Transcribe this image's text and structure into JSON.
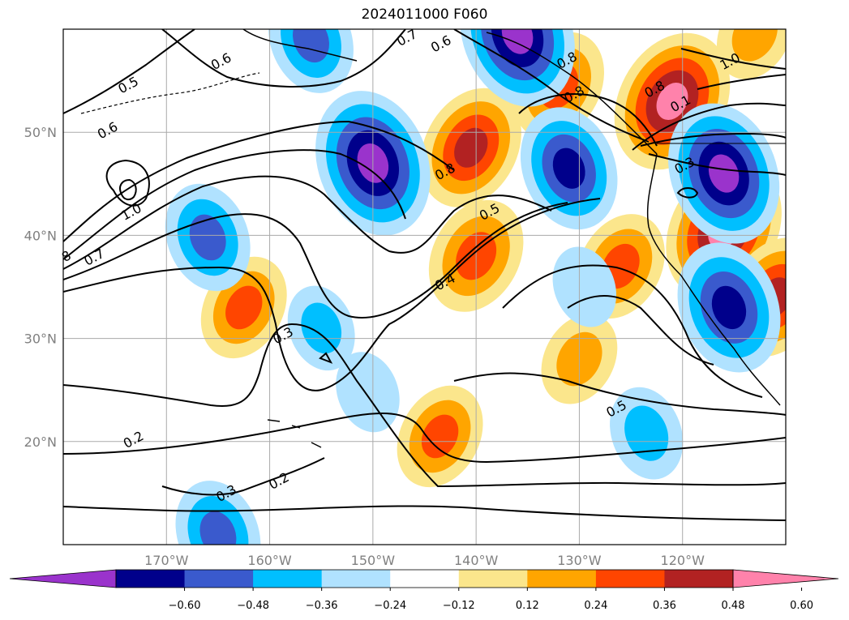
{
  "title": "2024011000 F060",
  "map": {
    "projection": "lat-lon",
    "lon_range": [
      -180,
      -110
    ],
    "lat_range": [
      10,
      60
    ],
    "grid": true,
    "lat_ticks": [
      {
        "value": 50,
        "label": "50°N"
      },
      {
        "value": 40,
        "label": "40°N"
      },
      {
        "value": 30,
        "label": "30°N"
      },
      {
        "value": 20,
        "label": "20°N"
      }
    ],
    "lon_ticks": [
      {
        "value": -170,
        "label": "170°W"
      },
      {
        "value": -160,
        "label": "160°W"
      },
      {
        "value": -150,
        "label": "150°W"
      },
      {
        "value": -140,
        "label": "140°W"
      },
      {
        "value": -130,
        "label": "130°W"
      },
      {
        "value": -120,
        "label": "120°W"
      }
    ],
    "contour_labels": [
      {
        "text": "0.6",
        "lon": -175.5,
        "lat": 49.8
      },
      {
        "text": "0.5",
        "lon": -173.5,
        "lat": 54.2
      },
      {
        "text": "0.6",
        "lon": -164.5,
        "lat": 56.5
      },
      {
        "text": "0.7",
        "lon": -146.5,
        "lat": 58.8
      },
      {
        "text": "0.6",
        "lon": -143.2,
        "lat": 58.2
      },
      {
        "text": "0.8",
        "lon": -142.8,
        "lat": 45.8
      },
      {
        "text": "0.5",
        "lon": -138.5,
        "lat": 41.9
      },
      {
        "text": "0.4",
        "lon": -142.8,
        "lat": 35.1
      },
      {
        "text": "0.3",
        "lon": -158.5,
        "lat": 29.9
      },
      {
        "text": "1.0",
        "lon": -173.2,
        "lat": 41.9
      },
      {
        "text": "0.7",
        "lon": -176.8,
        "lat": 37.5
      },
      {
        "text": "8",
        "lon": -179.5,
        "lat": 37.6
      },
      {
        "text": "0.2",
        "lon": -173,
        "lat": 19.8
      },
      {
        "text": "0.3",
        "lon": -164,
        "lat": 14.6
      },
      {
        "text": "0.2",
        "lon": -158.9,
        "lat": 15.8
      },
      {
        "text": "0.5",
        "lon": -126.2,
        "lat": 22.8
      },
      {
        "text": "0.8",
        "lon": -122.5,
        "lat": 53.8
      },
      {
        "text": "1.0",
        "lon": -115.2,
        "lat": 56.5
      },
      {
        "text": "0.8",
        "lon": -131,
        "lat": 56.6
      },
      {
        "text": "0.8",
        "lon": -130.3,
        "lat": 53.3
      },
      {
        "text": "0.1",
        "lon": -120,
        "lat": 52.4
      },
      {
        "text": "0.3",
        "lon": -119.6,
        "lat": 46.4
      }
    ],
    "shaded_field": {
      "positive": [
        {
          "lon": -140.5,
          "lat": 48.5,
          "intensity": 0.5
        },
        {
          "lon": -140,
          "lat": 38,
          "intensity": 0.45
        },
        {
          "lon": -162.5,
          "lat": 33,
          "intensity": 0.38
        },
        {
          "lon": -132,
          "lat": 54.5,
          "intensity": 0.42
        },
        {
          "lon": -121,
          "lat": 53,
          "intensity": 0.62
        },
        {
          "lon": -116,
          "lat": 40.5,
          "intensity": 0.62
        },
        {
          "lon": -126,
          "lat": 37,
          "intensity": 0.4
        },
        {
          "lon": -111,
          "lat": 34,
          "intensity": 0.5
        },
        {
          "lon": -143.5,
          "lat": 20.5,
          "intensity": 0.38
        },
        {
          "lon": -130,
          "lat": 28,
          "intensity": 0.3
        },
        {
          "lon": -113,
          "lat": 59.5,
          "intensity": 0.3
        }
      ],
      "negative": [
        {
          "lon": -150,
          "lat": 47,
          "intensity": -0.65
        },
        {
          "lon": -131,
          "lat": 46.5,
          "intensity": -0.5
        },
        {
          "lon": -116,
          "lat": 46,
          "intensity": -0.62
        },
        {
          "lon": -115.5,
          "lat": 33,
          "intensity": -0.55
        },
        {
          "lon": -166,
          "lat": 39.8,
          "intensity": -0.4
        },
        {
          "lon": -136,
          "lat": 59.5,
          "intensity": -0.65
        },
        {
          "lon": -156,
          "lat": 59,
          "intensity": -0.4
        },
        {
          "lon": -165,
          "lat": 11,
          "intensity": -0.4
        },
        {
          "lon": -123.5,
          "lat": 20.8,
          "intensity": -0.3
        },
        {
          "lon": -155,
          "lat": 31,
          "intensity": -0.25
        },
        {
          "lon": -150.5,
          "lat": 24.8,
          "intensity": -0.22
        },
        {
          "lon": -129.5,
          "lat": 35,
          "intensity": -0.22
        }
      ]
    }
  },
  "colorbar": {
    "colors": [
      "#9a33cc",
      "#00008b",
      "#3a5acd",
      "#00bfff",
      "#b0e2ff",
      "#ffffff",
      "#fbe68c",
      "#ffa500",
      "#ff4500",
      "#b22222",
      "#ff82ab"
    ],
    "tick_labels": [
      "−0.60",
      "−0.48",
      "−0.36",
      "−0.24",
      "−0.12",
      "0.12",
      "0.24",
      "0.36",
      "0.48",
      "0.60"
    ]
  }
}
